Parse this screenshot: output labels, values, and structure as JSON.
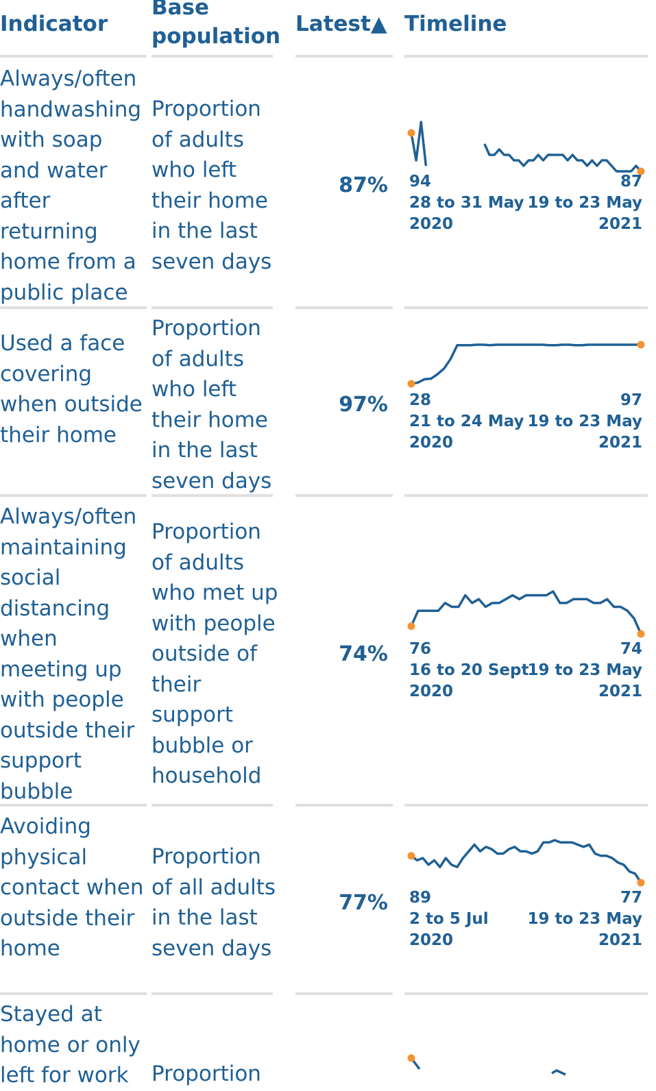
{
  "headers": {
    "indicator": "Indicator",
    "base_population": "Base population",
    "latest": "Latest",
    "latest_sort_icon": "▲",
    "timeline": "Timeline"
  },
  "colors": {
    "primary": "#206095",
    "marker": "#f39431",
    "rule": "#e0e0e0"
  },
  "rows": [
    {
      "indicator": "Always/often handwashing with soap and water after returning home from a public place",
      "base": "Proportion of adults who left their home in the last seven days",
      "latest": "87%",
      "first_value": "94",
      "first_date": "28 to 31 May",
      "first_year": "2020",
      "last_value": "87",
      "last_date": "19 to 23 May",
      "last_year": "2021",
      "series": [
        94,
        89,
        96,
        88,
        null,
        null,
        null,
        null,
        null,
        null,
        null,
        null,
        null,
        null,
        null,
        92,
        90,
        90,
        91,
        90,
        90,
        89,
        89,
        88,
        89,
        89,
        90,
        89,
        90,
        90,
        90,
        90,
        89,
        90,
        89,
        89,
        88,
        89,
        88,
        89,
        89,
        88,
        87,
        87,
        87,
        87,
        88,
        87
      ]
    },
    {
      "indicator": "Used a face covering when outside their home",
      "base": "Proportion of adults who left their home in the last seven days",
      "latest": "97%",
      "first_value": "28",
      "first_date": "21 to 24 May",
      "first_year": "2020",
      "last_value": "97",
      "last_date": "19 to 23 May",
      "last_year": "2021",
      "series": [
        28,
        30,
        36,
        37,
        45,
        55,
        72,
        96,
        96,
        96,
        97,
        97,
        96,
        97,
        97,
        97,
        97,
        97,
        97,
        97,
        97,
        96,
        96,
        97,
        97,
        96,
        96,
        97,
        97,
        97,
        97,
        97,
        97,
        97,
        97,
        97
      ]
    },
    {
      "indicator": "Always/often maintaining social distancing when meeting up with people outside their support bubble",
      "base": "Proportion of adults who met up with people outside of their support bubble or household",
      "latest": "74%",
      "first_value": "76",
      "first_date": "16 to 20 Sept",
      "first_year": "2020",
      "last_value": "74",
      "last_date": "19 to 23 May",
      "last_year": "2021",
      "series": [
        76,
        80,
        80,
        80,
        80,
        82,
        81,
        81,
        84,
        82,
        83,
        81,
        82,
        82,
        83,
        84,
        83,
        84,
        84,
        84,
        84,
        85,
        82,
        82,
        83,
        83,
        83,
        82,
        82,
        83,
        81,
        81,
        80,
        78,
        74
      ]
    },
    {
      "indicator": "Avoiding physical contact when outside their home",
      "base": "Proportion of all adults in the last seven days",
      "latest": "77%",
      "first_value": "89",
      "first_date": "2 to 5 Jul",
      "first_year": "2020",
      "last_value": "77",
      "last_date": "19 to 23 May",
      "last_year": "2021",
      "series": [
        89,
        87,
        88,
        85,
        87,
        84,
        88,
        85,
        84,
        88,
        91,
        94,
        91,
        93,
        92,
        90,
        90,
        92,
        93,
        91,
        91,
        90,
        91,
        95,
        95,
        96,
        95,
        95,
        95,
        94,
        93,
        94,
        90,
        89,
        89,
        88,
        86,
        85,
        82,
        81,
        77
      ]
    },
    {
      "indicator": "Stayed at home or only left for work",
      "base": "Proportion"
    }
  ]
}
